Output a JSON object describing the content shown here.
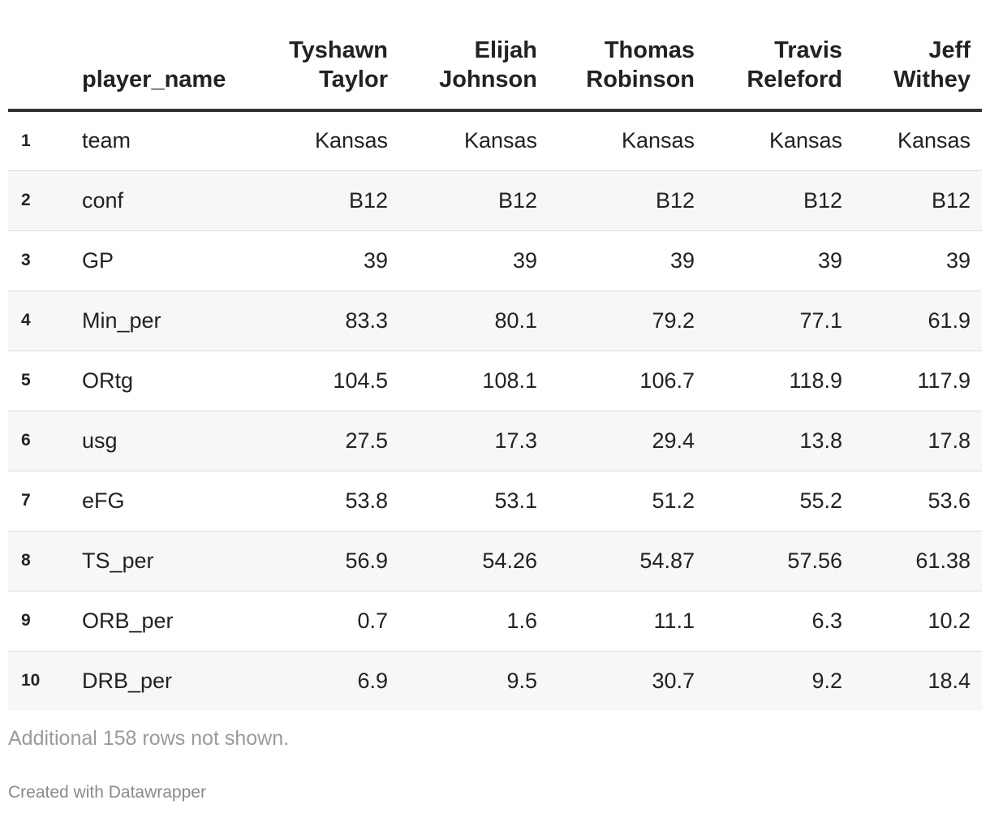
{
  "chart_data": {
    "type": "table",
    "columns": [
      "player_name",
      "Tyshawn Taylor",
      "Elijah Johnson",
      "Thomas Robinson",
      "Travis Releford",
      "Jeff Withey"
    ],
    "header_lines": [
      [
        "player_name"
      ],
      [
        "Tyshawn",
        "Taylor"
      ],
      [
        "Elijah",
        "Johnson"
      ],
      [
        "Thomas",
        "Robinson"
      ],
      [
        "Travis",
        "Releford"
      ],
      [
        "Jeff",
        "Withey"
      ]
    ],
    "rows": [
      {
        "index": "1",
        "label": "team",
        "values": [
          "Kansas",
          "Kansas",
          "Kansas",
          "Kansas",
          "Kansas"
        ]
      },
      {
        "index": "2",
        "label": "conf",
        "values": [
          "B12",
          "B12",
          "B12",
          "B12",
          "B12"
        ]
      },
      {
        "index": "3",
        "label": "GP",
        "values": [
          "39",
          "39",
          "39",
          "39",
          "39"
        ]
      },
      {
        "index": "4",
        "label": "Min_per",
        "values": [
          "83.3",
          "80.1",
          "79.2",
          "77.1",
          "61.9"
        ]
      },
      {
        "index": "5",
        "label": "ORtg",
        "values": [
          "104.5",
          "108.1",
          "106.7",
          "118.9",
          "117.9"
        ]
      },
      {
        "index": "6",
        "label": "usg",
        "values": [
          "27.5",
          "17.3",
          "29.4",
          "13.8",
          "17.8"
        ]
      },
      {
        "index": "7",
        "label": "eFG",
        "values": [
          "53.8",
          "53.1",
          "51.2",
          "55.2",
          "53.6"
        ]
      },
      {
        "index": "8",
        "label": "TS_per",
        "values": [
          "56.9",
          "54.26",
          "54.87",
          "57.56",
          "61.38"
        ]
      },
      {
        "index": "9",
        "label": "ORB_per",
        "values": [
          "0.7",
          "1.6",
          "11.1",
          "6.3",
          "10.2"
        ]
      },
      {
        "index": "10",
        "label": "DRB_per",
        "values": [
          "6.9",
          "9.5",
          "30.7",
          "9.2",
          "18.4"
        ]
      }
    ],
    "footnote": "Additional 158 rows not shown.",
    "credit": "Created with Datawrapper"
  },
  "colors": {
    "text": "#222222",
    "stripe": "#f7f7f7",
    "rule": "#333333",
    "muted": "#9a9a9a"
  }
}
